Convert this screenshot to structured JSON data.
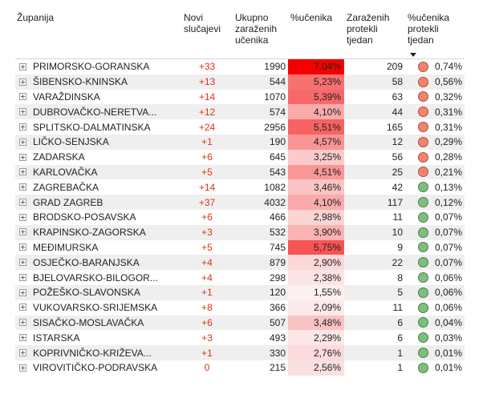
{
  "headers": {
    "county": "Županija",
    "new_cases": "Novi slučajevi",
    "total_infected": "Ukupno zaraženih učenika",
    "pct_students": "%učenika",
    "infected_week": "Zaraženih protekli tjedan",
    "pct_week": "%učenika protekli tjedan"
  },
  "colors": {
    "orange_dot": "#f5826b",
    "green_dot": "#7dbf7d",
    "red_strong": "#f40000",
    "new_cases_text": "#e0301e"
  },
  "rows": [
    {
      "county": "PRIMORSKO-GORANSKA",
      "new": "+33",
      "total": "1990",
      "pct": "7,04%",
      "pct_value": 7.04,
      "week": "209",
      "wpct": "0,74%",
      "status": "orange"
    },
    {
      "county": "ŠIBENSKO-KNINSKA",
      "new": "+13",
      "total": "544",
      "pct": "5,23%",
      "pct_value": 5.23,
      "week": "58",
      "wpct": "0,56%",
      "status": "orange"
    },
    {
      "county": "VARAŽDINSKA",
      "new": "+14",
      "total": "1070",
      "pct": "5,39%",
      "pct_value": 5.39,
      "week": "63",
      "wpct": "0,32%",
      "status": "orange"
    },
    {
      "county": "DUBROVAČKO-NERETVA...",
      "new": "+12",
      "total": "574",
      "pct": "4,10%",
      "pct_value": 4.1,
      "week": "44",
      "wpct": "0,31%",
      "status": "orange"
    },
    {
      "county": "SPLITSKO-DALMATINSKA",
      "new": "+24",
      "total": "2956",
      "pct": "5,51%",
      "pct_value": 5.51,
      "week": "165",
      "wpct": "0,31%",
      "status": "orange"
    },
    {
      "county": "LIČKO-SENJSKA",
      "new": "+1",
      "total": "190",
      "pct": "4,57%",
      "pct_value": 4.57,
      "week": "12",
      "wpct": "0,29%",
      "status": "orange"
    },
    {
      "county": "ZADARSKA",
      "new": "+6",
      "total": "645",
      "pct": "3,25%",
      "pct_value": 3.25,
      "week": "56",
      "wpct": "0,28%",
      "status": "orange"
    },
    {
      "county": "KARLOVAČKA",
      "new": "+5",
      "total": "543",
      "pct": "4,51%",
      "pct_value": 4.51,
      "week": "25",
      "wpct": "0,21%",
      "status": "orange"
    },
    {
      "county": "ZAGREBAČKA",
      "new": "+14",
      "total": "1082",
      "pct": "3,46%",
      "pct_value": 3.46,
      "week": "42",
      "wpct": "0,13%",
      "status": "green"
    },
    {
      "county": "GRAD ZAGREB",
      "new": "+37",
      "total": "4032",
      "pct": "4,10%",
      "pct_value": 4.1,
      "week": "117",
      "wpct": "0,12%",
      "status": "green"
    },
    {
      "county": "BRODSKO-POSAVSKA",
      "new": "+6",
      "total": "466",
      "pct": "2,98%",
      "pct_value": 2.98,
      "week": "11",
      "wpct": "0,07%",
      "status": "green"
    },
    {
      "county": "KRAPINSKO-ZAGORSKA",
      "new": "+3",
      "total": "532",
      "pct": "3,90%",
      "pct_value": 3.9,
      "week": "10",
      "wpct": "0,07%",
      "status": "green"
    },
    {
      "county": "MEĐIMURSKA",
      "new": "+5",
      "total": "745",
      "pct": "5,75%",
      "pct_value": 5.75,
      "week": "9",
      "wpct": "0,07%",
      "status": "green"
    },
    {
      "county": "OSJEČKO-BARANJSKA",
      "new": "+4",
      "total": "879",
      "pct": "2,90%",
      "pct_value": 2.9,
      "week": "22",
      "wpct": "0,07%",
      "status": "green"
    },
    {
      "county": "BJELOVARSKO-BILOGOR...",
      "new": "+4",
      "total": "298",
      "pct": "2,38%",
      "pct_value": 2.38,
      "week": "8",
      "wpct": "0,06%",
      "status": "green"
    },
    {
      "county": "POŽEŠKO-SLAVONSKA",
      "new": "+1",
      "total": "120",
      "pct": "1,55%",
      "pct_value": 1.55,
      "week": "5",
      "wpct": "0,06%",
      "status": "green"
    },
    {
      "county": "VUKOVARSKO-SRIJEMSKA",
      "new": "+8",
      "total": "366",
      "pct": "2,09%",
      "pct_value": 2.09,
      "week": "11",
      "wpct": "0,06%",
      "status": "green"
    },
    {
      "county": "SISAČKO-MOSLAVAČKA",
      "new": "+6",
      "total": "507",
      "pct": "3,48%",
      "pct_value": 3.48,
      "week": "6",
      "wpct": "0,04%",
      "status": "green"
    },
    {
      "county": "ISTARSKA",
      "new": "+3",
      "total": "493",
      "pct": "2,29%",
      "pct_value": 2.29,
      "week": "6",
      "wpct": "0,03%",
      "status": "green"
    },
    {
      "county": "KOPRIVNIČKO-KRIŽEVA...",
      "new": "+1",
      "total": "330",
      "pct": "2,76%",
      "pct_value": 2.76,
      "week": "1",
      "wpct": "0,01%",
      "status": "green"
    },
    {
      "county": "VIROVITIČKO-PODRAVSKA",
      "new": "0",
      "total": "215",
      "pct": "2,56%",
      "pct_value": 2.56,
      "week": "1",
      "wpct": "0,01%",
      "status": "green"
    }
  ]
}
